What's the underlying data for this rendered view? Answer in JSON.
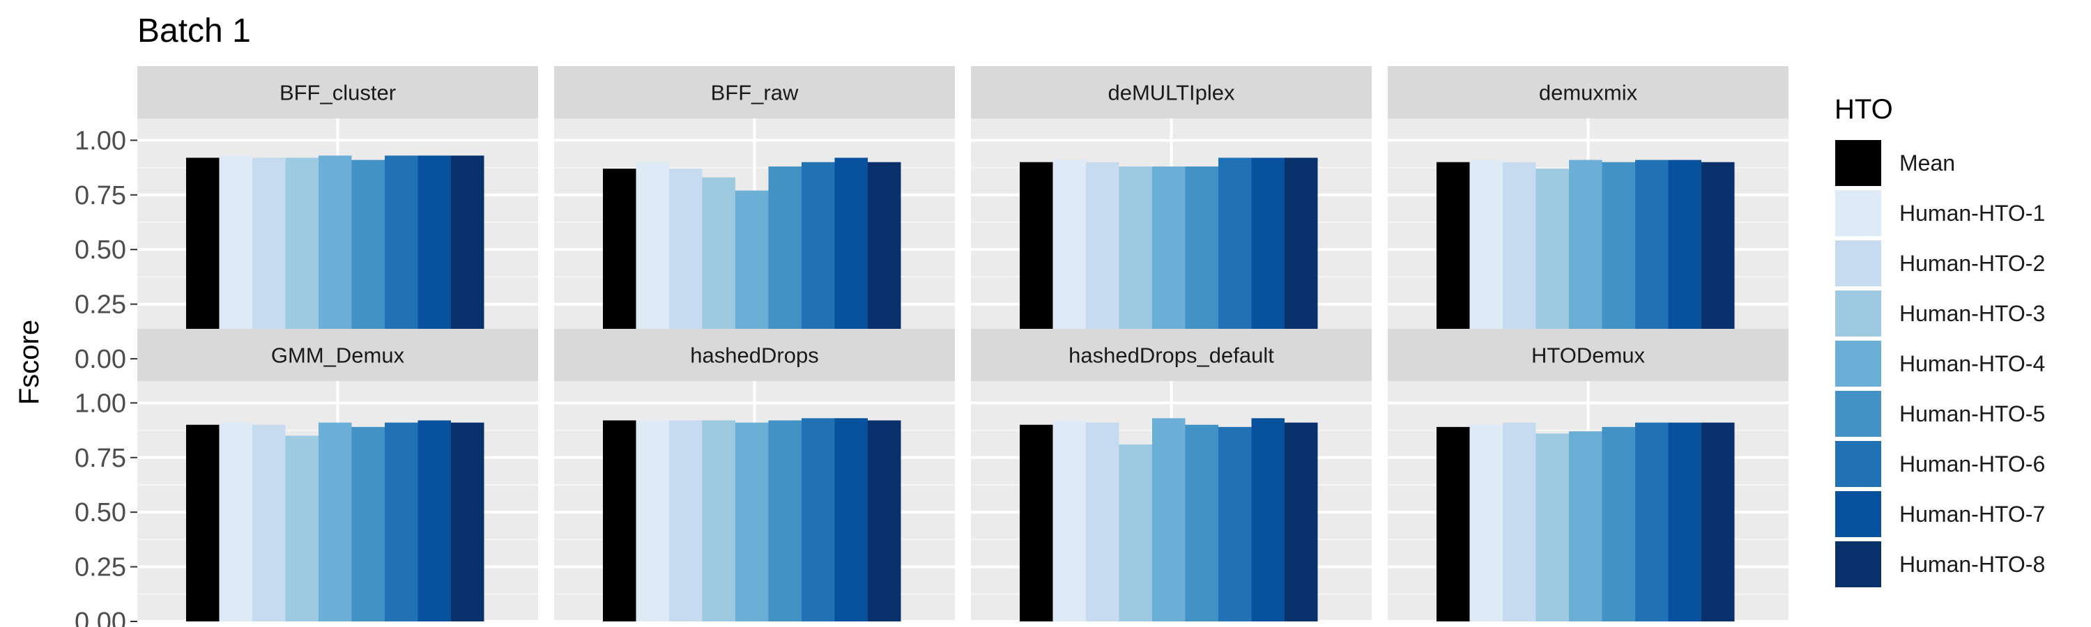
{
  "chart_data": {
    "type": "bar",
    "title": "Batch 1",
    "ylabel": "Fscore",
    "xlabel": "",
    "ylim": [
      0,
      1.1
    ],
    "yticks": [
      "0.00",
      "0.25",
      "0.50",
      "0.75",
      "1.00"
    ],
    "ytick_values": [
      0,
      0.25,
      0.5,
      0.75,
      1.0
    ],
    "grid": true,
    "legend": {
      "title": "HTO",
      "placement": "right",
      "entries": [
        "Mean",
        "Human-HTO-1",
        "Human-HTO-2",
        "Human-HTO-3",
        "Human-HTO-4",
        "Human-HTO-5",
        "Human-HTO-6",
        "Human-HTO-7",
        "Human-HTO-8"
      ]
    },
    "colors": [
      "#000000",
      "#deebf7",
      "#c6dbef",
      "#9ecae1",
      "#6baed6",
      "#4292c6",
      "#2171b5",
      "#08519c",
      "#08306b"
    ],
    "panels": [
      {
        "name": "BFF_cluster",
        "values": [
          0.92,
          0.93,
          0.92,
          0.92,
          0.93,
          0.91,
          0.93,
          0.93,
          0.93
        ]
      },
      {
        "name": "BFF_raw",
        "values": [
          0.87,
          0.9,
          0.87,
          0.83,
          0.77,
          0.88,
          0.9,
          0.92,
          0.9
        ]
      },
      {
        "name": "deMULTIplex",
        "values": [
          0.9,
          0.91,
          0.9,
          0.88,
          0.88,
          0.88,
          0.92,
          0.92,
          0.92
        ]
      },
      {
        "name": "demuxmix",
        "values": [
          0.9,
          0.91,
          0.9,
          0.87,
          0.91,
          0.9,
          0.91,
          0.91,
          0.9
        ]
      },
      {
        "name": "GMM_Demux",
        "values": [
          0.9,
          0.91,
          0.9,
          0.85,
          0.91,
          0.89,
          0.91,
          0.92,
          0.91
        ]
      },
      {
        "name": "hashedDrops",
        "values": [
          0.92,
          0.92,
          0.92,
          0.92,
          0.91,
          0.92,
          0.93,
          0.93,
          0.92
        ]
      },
      {
        "name": "hashedDrops_default",
        "values": [
          0.9,
          0.92,
          0.91,
          0.81,
          0.93,
          0.9,
          0.89,
          0.93,
          0.91
        ]
      },
      {
        "name": "HTODemux",
        "values": [
          0.89,
          0.9,
          0.91,
          0.86,
          0.87,
          0.89,
          0.91,
          0.91,
          0.91
        ]
      }
    ]
  }
}
